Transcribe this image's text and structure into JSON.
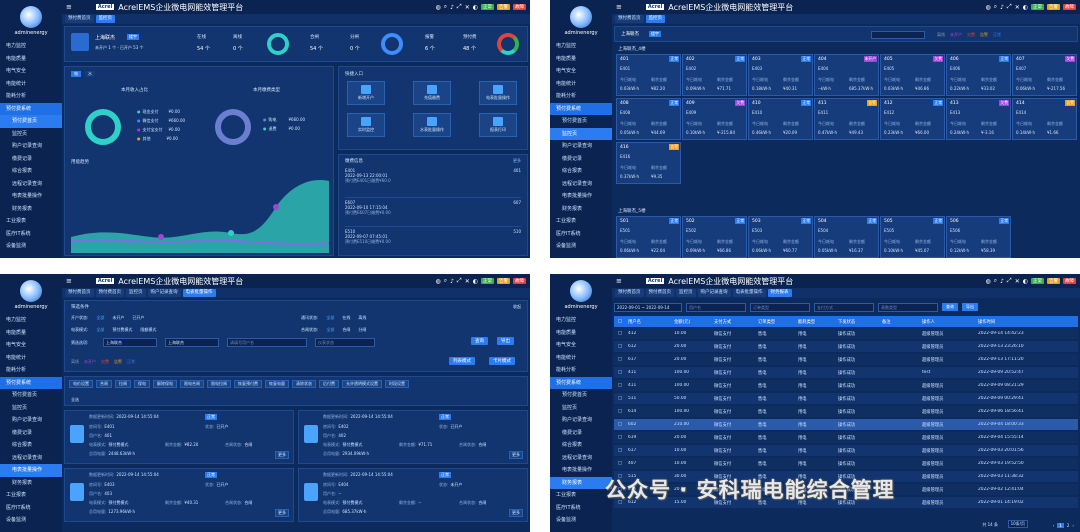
{
  "app": {
    "title": "AcrelEMS企业微电网能效管理平台",
    "logo": "Acrel",
    "user": "adminenergy",
    "badges": [
      "正常",
      "告警",
      "故障"
    ]
  },
  "nav": [
    "电力监控",
    "电能质量",
    "电气安全",
    "电能统计",
    "能耗分析",
    "预付费系统",
    "预付费首页",
    "监控页",
    "购户记录查询",
    "缴费记录",
    "综合报表",
    "远程记录查询",
    "电表批量操作",
    "财务报表",
    "工业报表",
    "医疗IT系统",
    "设备监测"
  ],
  "p1": {
    "tabs": [
      "预付费首页",
      "监控页"
    ],
    "building": "上海联杰",
    "building_tag": "楼宇",
    "building_sub": "未开户 1 个 · 已开户 53 个",
    "stats": [
      {
        "label": "在线",
        "value": "54 个"
      },
      {
        "label": "离线",
        "value": "0 个"
      },
      {
        "label": "合闸",
        "value": "54 个"
      },
      {
        "label": "分闸",
        "value": "0 个"
      },
      {
        "label": "报警",
        "value": "6 个"
      },
      {
        "label": "预付费",
        "value": "48 个"
      }
    ],
    "toggle": [
      "电",
      "水"
    ],
    "revenue_title": "本月收入占比",
    "pay_title": "本月缴费类型",
    "revenue_legend": [
      {
        "label": "现金支付",
        "value": "¥0.00"
      },
      {
        "label": "微信支付",
        "value": "¥660.00"
      },
      {
        "label": "支付宝支付",
        "value": "¥0.00"
      },
      {
        "label": "其他",
        "value": "¥0.00"
      }
    ],
    "pay_legend": [
      {
        "label": "购电",
        "value": "¥660.00"
      },
      {
        "label": "退费",
        "value": "¥0.00"
      }
    ],
    "trend_title": "用能趋势",
    "quick_title": "快捷入口",
    "quick": [
      "新增开户",
      "充值缴费",
      "电表批量操作",
      "实时监控",
      "水表批量操作",
      "报表打印"
    ],
    "news_title": "缴费信息",
    "news_more": "更多",
    "news": [
      {
        "room": "E401",
        "time": "2022-09-13 22:00:01",
        "desc": "预付费E401已缴费¥60.0",
        "user": "401"
      },
      {
        "room": "E607",
        "time": "2022-09-10 17:15:04",
        "desc": "预付费E607已缴费¥0.00",
        "user": "607"
      },
      {
        "room": "E510",
        "time": "2022-09-07 07:45:01",
        "desc": "预付费E510已缴费¥0.00",
        "user": "510"
      }
    ]
  },
  "p2": {
    "tabs": [
      "预付费首页",
      "监控页"
    ],
    "building": "上海联杰",
    "building_tag": "楼宇",
    "legend": [
      "离线",
      "未开户",
      "欠费",
      "告警",
      "正常"
    ],
    "floor4": "上海联杰_4楼",
    "floor5": "上海联杰_5楼",
    "cards4": [
      {
        "no": "401",
        "room": "E401",
        "status": "正常",
        "usage": "0.03kW·h",
        "balance": "¥82.20"
      },
      {
        "no": "402",
        "room": "E402",
        "status": "正常",
        "usage": "0.09kW·h",
        "balance": "¥71.71"
      },
      {
        "no": "403",
        "room": "E403",
        "status": "正常",
        "usage": "0.18kW·h",
        "balance": "¥40.31"
      },
      {
        "no": "404",
        "room": "E404",
        "status": "未开户",
        "usage": "--kW·h",
        "balance": "685.37kW·h"
      },
      {
        "no": "405",
        "room": "E405",
        "status": "欠费",
        "usage": "0.03kW·h",
        "balance": "¥46.86"
      },
      {
        "no": "406",
        "room": "E406",
        "status": "正常",
        "usage": "0.22kW·h",
        "balance": "¥33.02"
      },
      {
        "no": "407",
        "room": "E407",
        "status": "欠费",
        "usage": "0.06kW·h",
        "balance": "¥-217.56"
      },
      {
        "no": "408",
        "room": "E408",
        "status": "正常",
        "usage": "0.05kW·h",
        "balance": "¥44.69"
      },
      {
        "no": "409",
        "room": "E409",
        "status": "欠费",
        "usage": "0.10kW·h",
        "balance": "¥-215.84"
      },
      {
        "no": "410",
        "room": "E410",
        "status": "正常",
        "usage": "0.46kW·h",
        "balance": "¥20.09"
      },
      {
        "no": "411",
        "room": "E411",
        "status": "告警",
        "usage": "0.47kW·h",
        "balance": "¥49.43"
      },
      {
        "no": "412",
        "room": "E412",
        "status": "正常",
        "usage": "0.23kW·h",
        "balance": "¥66.00"
      },
      {
        "no": "413",
        "room": "E413",
        "status": "欠费",
        "usage": "0.24kW·h",
        "balance": "¥-3.16"
      },
      {
        "no": "414",
        "room": "E414",
        "status": "告警",
        "usage": "0.14kW·h",
        "balance": "¥1.66"
      },
      {
        "no": "416",
        "room": "E416",
        "status": "告警",
        "usage": "0.37kW·h",
        "balance": "¥9.35"
      }
    ],
    "cards5": [
      {
        "no": "501",
        "room": "E501",
        "status": "正常",
        "usage": "0.06kW·h",
        "balance": "¥22.04"
      },
      {
        "no": "502",
        "room": "E502",
        "status": "正常",
        "usage": "0.09kW·h",
        "balance": "¥66.86"
      },
      {
        "no": "503",
        "room": "E503",
        "status": "正常",
        "usage": "0.06kW·h",
        "balance": "¥60.77"
      },
      {
        "no": "504",
        "room": "E504",
        "status": "正常",
        "usage": "0.05kW·h",
        "balance": "¥16.37"
      },
      {
        "no": "505",
        "room": "E505",
        "status": "正常",
        "usage": "0.10kW·h",
        "balance": "¥45.07"
      },
      {
        "no": "506",
        "room": "E506",
        "status": "正常",
        "usage": "0.12kW·h",
        "balance": "¥58.39"
      }
    ],
    "labels": {
      "today": "今日耗电",
      "balance": "剩余金额"
    }
  },
  "p3": {
    "tabs": [
      "预付费首页",
      "预付费首页",
      "监控页",
      "购户记录查询",
      "电表批量操作"
    ],
    "filter_title": "筛选条件",
    "collapse": "收起",
    "f1_label": "开户状态:",
    "f1": [
      "全部",
      "未开户",
      "已开户"
    ],
    "f2_label": "通讯状态:",
    "f2": [
      "全部",
      "在线",
      "离线"
    ],
    "f3_label": "电表模式:",
    "f3": [
      "全部",
      "预付费模式",
      "限额模式"
    ],
    "f4_label": "合闸状态:",
    "f4": [
      "全部",
      "合闸",
      "分闸"
    ],
    "f5_label": "筛选选项:",
    "f5_a": "上海联杰",
    "f5_b": "上海联杰",
    "f5_c": "请填写用户名",
    "f5_d": "仪表状态",
    "search": "查询",
    "export": "导出",
    "legend": [
      "离线",
      "未开户",
      "欠费",
      "告警",
      "正常"
    ],
    "mode_btns": [
      "列表模式",
      "卡片模式"
    ],
    "ops": [
      "电价设置",
      "合闸",
      "拉闸",
      "保电",
      "解除保电",
      "限电合闸",
      "限电拉闸",
      "恢复预付费",
      "恢复电量",
      "清除状态",
      "后付费"
    ],
    "ops2": [
      "允许透明模式设置",
      "时段设置"
    ],
    "all": "全选",
    "cards": [
      {
        "time": "2022-09-14 14:55:04",
        "status": "正常",
        "room": "E401",
        "user": "401",
        "state": "已开户",
        "mode": "预付费模式",
        "bal": "¥82.20",
        "gate": "合闸",
        "usage": "2448.63kW·h"
      },
      {
        "time": "2022-09-14 14:55:04",
        "status": "正常",
        "room": "E402",
        "user": "402",
        "state": "已开户",
        "mode": "预付费模式",
        "bal": "¥71.71",
        "gate": "合闸",
        "usage": "2934.09kW·h"
      },
      {
        "time": "2022-09-14 14:55:04",
        "status": "正常",
        "room": "E403",
        "user": "403",
        "state": "已开户",
        "mode": "预付费模式",
        "bal": "¥40.31",
        "gate": "合闸",
        "usage": "1273.96kW·h"
      },
      {
        "time": "2022-09-14 14:55:04",
        "status": "正常",
        "room": "E404",
        "user": "--",
        "state": "未开户",
        "mode": "预付费模式",
        "bal": "--",
        "gate": "合闸",
        "usage": "685.37kW·h"
      }
    ],
    "labels": {
      "time": "数据更新时间:",
      "room": "房间号:",
      "user": "用户名:",
      "state": "状态:",
      "mode": "电表模式:",
      "bal": "剩余金额:",
      "gate": "合闸状态:",
      "usage": "总用电量:",
      "more": "更多"
    }
  },
  "p4": {
    "tabs": [
      "预付费首页",
      "预付费首页",
      "监控页",
      "购户记录查询",
      "电表批量操作",
      "财务报表"
    ],
    "date": "2022-09-01 ~ 2022-09-14",
    "f_user": "用户名",
    "f_order": "订单类型",
    "f_pay": "支付方式",
    "f_meter": "表数类型",
    "search": "查询",
    "export": "导出",
    "cols": [
      "用户名",
      "金额(元)",
      "支付方式",
      "订单类型",
      "能耗类型",
      "下发状态",
      "备注",
      "操作人",
      "操作时间"
    ],
    "rows": [
      [
        "412",
        "10.00",
        "微信支付",
        "售电",
        "用电",
        "操作成功",
        "",
        "超级管理员",
        "2022-09-14 14:42:23"
      ],
      [
        "612",
        "20.00",
        "微信支付",
        "售电",
        "用电",
        "操作成功",
        "",
        "超级管理员",
        "2022-09-13 23:26:10"
      ],
      [
        "617",
        "20.00",
        "微信支付",
        "售电",
        "用电",
        "操作成功",
        "",
        "超级管理员",
        "2022-09-13 17:11:20"
      ],
      [
        "411",
        "100.00",
        "微信支付",
        "售电",
        "用电",
        "操作成功",
        "",
        "test",
        "2022-09-09 20:52:47"
      ],
      [
        "411",
        "100.00",
        "微信支付",
        "售电",
        "用电",
        "操作成功",
        "",
        "超级管理员",
        "2022-09-09 08:21:29"
      ],
      [
        "511",
        "50.00",
        "微信支付",
        "售电",
        "用电",
        "操作成功",
        "",
        "超级管理员",
        "2022-09-09 00:29:41"
      ],
      [
        "614",
        "100.00",
        "微信支付",
        "售电",
        "用电",
        "操作成功",
        "",
        "超级管理员",
        "2022-09-06 18:56:41"
      ],
      [
        "602",
        "210.00",
        "微信支付",
        "售电",
        "用电",
        "操作成功",
        "",
        "超级管理员",
        "2022-09-04 18:00:33"
      ],
      [
        "619",
        "20.00",
        "微信支付",
        "售电",
        "用电",
        "操作成功",
        "",
        "超级管理员",
        "2022-09-04 15:55:14"
      ],
      [
        "617",
        "10.00",
        "微信支付",
        "售电",
        "用电",
        "操作成功",
        "",
        "超级管理员",
        "2022-09-03 20:01:56"
      ],
      [
        "407",
        "10.00",
        "微信支付",
        "售电",
        "用电",
        "操作成功",
        "",
        "超级管理员",
        "2022-09-03 19:52:50"
      ],
      [
        "515",
        "30.00",
        "微信支付",
        "售电",
        "用电",
        "操作成功",
        "",
        "超级管理员",
        "2022-09-03 11:38:32"
      ],
      [
        "615",
        "20.00",
        "微信支付",
        "售电",
        "用电",
        "操作成功",
        "",
        "超级管理员",
        "2022-09-02 12:41:04"
      ],
      [
        "612",
        "15.00",
        "微信支付",
        "售电",
        "用电",
        "操作成功",
        "",
        "超级管理员",
        "2022-09-01 14:19:02"
      ]
    ],
    "total": "共 14 条",
    "pagesize": "10条/页"
  },
  "watermark": "公众号 · 安科瑞电能综合管理",
  "colors": {
    "bg": "#0d2a5c",
    "accent": "#2b7cf0",
    "teal": "#2fd0c8",
    "normal": "#2b7cf0",
    "warn": "#e6a11a",
    "owe": "#a244d6"
  }
}
